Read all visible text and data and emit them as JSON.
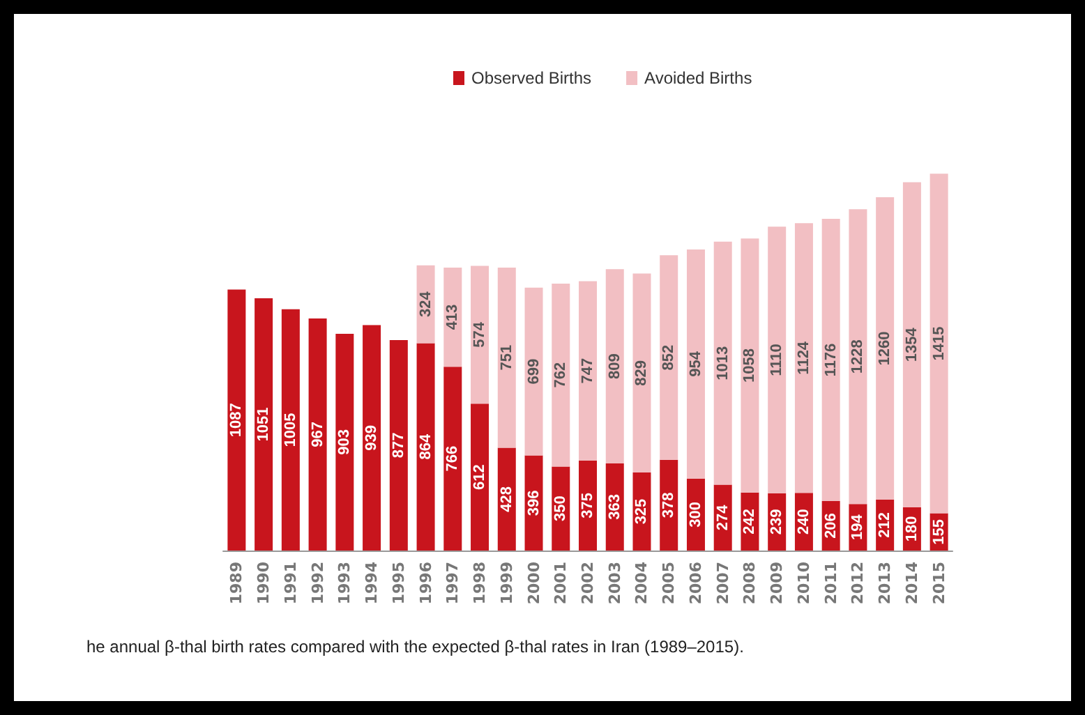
{
  "chart_data": {
    "type": "bar",
    "stacked": true,
    "data_labels": true,
    "legend": "top",
    "categories": [
      "1989",
      "1990",
      "1991",
      "1992",
      "1993",
      "1994",
      "1995",
      "1996",
      "1997",
      "1998",
      "1999",
      "2000",
      "2001",
      "2002",
      "2003",
      "2004",
      "2005",
      "2006",
      "2007",
      "2008",
      "2009",
      "2010",
      "2011",
      "2012",
      "2013",
      "2014",
      "2015"
    ],
    "series": [
      {
        "name": "Observed Births",
        "color": "#c8151d",
        "values": [
          1087,
          1051,
          1005,
          967,
          903,
          939,
          877,
          864,
          766,
          612,
          428,
          396,
          350,
          375,
          363,
          325,
          378,
          300,
          274,
          242,
          239,
          240,
          206,
          194,
          212,
          180,
          155
        ]
      },
      {
        "name": "Avoided Births",
        "color": "#f2bfc3",
        "values": [
          null,
          null,
          null,
          null,
          null,
          null,
          null,
          324,
          413,
          574,
          751,
          699,
          762,
          747,
          809,
          829,
          852,
          954,
          1013,
          1058,
          1110,
          1124,
          1176,
          1228,
          1260,
          1354,
          1415
        ]
      }
    ],
    "annotations": [
      "he annual β-thal birth rates compared with the expected β-thal rates in Iran (1989–2015)."
    ]
  }
}
